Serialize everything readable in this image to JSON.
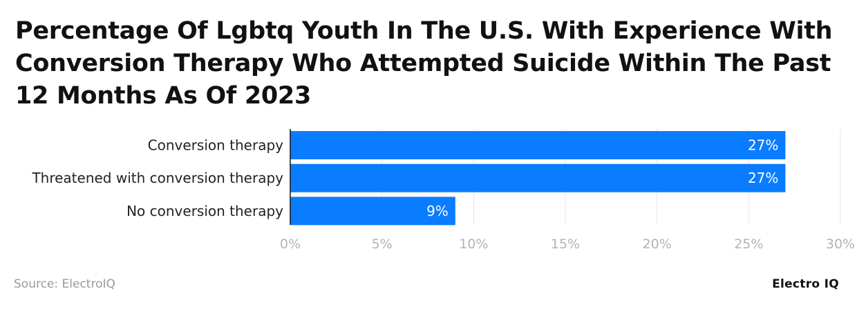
{
  "title": "Percentage Of Lgbtq Youth In The U.S. With Experience With Conversion Therapy Who Attempted Suicide Within The Past 12 Months As Of 2023",
  "source": "Source: ElectroIQ",
  "brand": "Electro IQ",
  "colors": {
    "bar": "#0a7cff",
    "grid": "#e6e6e6",
    "axis": "#111111"
  },
  "chart_data": {
    "type": "bar",
    "orientation": "horizontal",
    "categories": [
      "Conversion therapy",
      "Threatened with conversion therapy",
      "No conversion therapy"
    ],
    "values": [
      27,
      27,
      9
    ],
    "data_labels": [
      "27%",
      "27%",
      "9%"
    ],
    "xlim": [
      0,
      30
    ],
    "x_ticks": [
      0,
      5,
      10,
      15,
      20,
      25,
      30
    ],
    "x_tick_labels": [
      "0%",
      "5%",
      "10%",
      "15%",
      "20%",
      "25%",
      "30%"
    ],
    "grid": true,
    "legend": "none"
  }
}
